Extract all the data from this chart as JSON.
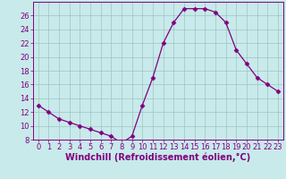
{
  "x": [
    0,
    1,
    2,
    3,
    4,
    5,
    6,
    7,
    8,
    9,
    10,
    11,
    12,
    13,
    14,
    15,
    16,
    17,
    18,
    19,
    20,
    21,
    22,
    23
  ],
  "y": [
    13,
    12,
    11,
    10.5,
    10,
    9.5,
    9,
    8.5,
    7.5,
    8.5,
    13,
    17,
    22,
    25,
    27,
    27,
    27,
    26.5,
    25,
    21,
    19,
    17,
    16,
    15
  ],
  "line_color": "#800080",
  "marker": "D",
  "marker_size": 2.5,
  "bg_color": "#c8eaea",
  "grid_color": "#9dc4c4",
  "xlabel": "Windchill (Refroidissement éolien,°C)",
  "xlabel_color": "#800080",
  "tick_color": "#800080",
  "ylim": [
    8,
    28
  ],
  "xlim": [
    -0.5,
    23.5
  ],
  "yticks": [
    8,
    10,
    12,
    14,
    16,
    18,
    20,
    22,
    24,
    26
  ],
  "xticks": [
    0,
    1,
    2,
    3,
    4,
    5,
    6,
    7,
    8,
    9,
    10,
    11,
    12,
    13,
    14,
    15,
    16,
    17,
    18,
    19,
    20,
    21,
    22,
    23
  ],
  "tick_fontsize": 6.0,
  "xlabel_fontsize": 7.0
}
